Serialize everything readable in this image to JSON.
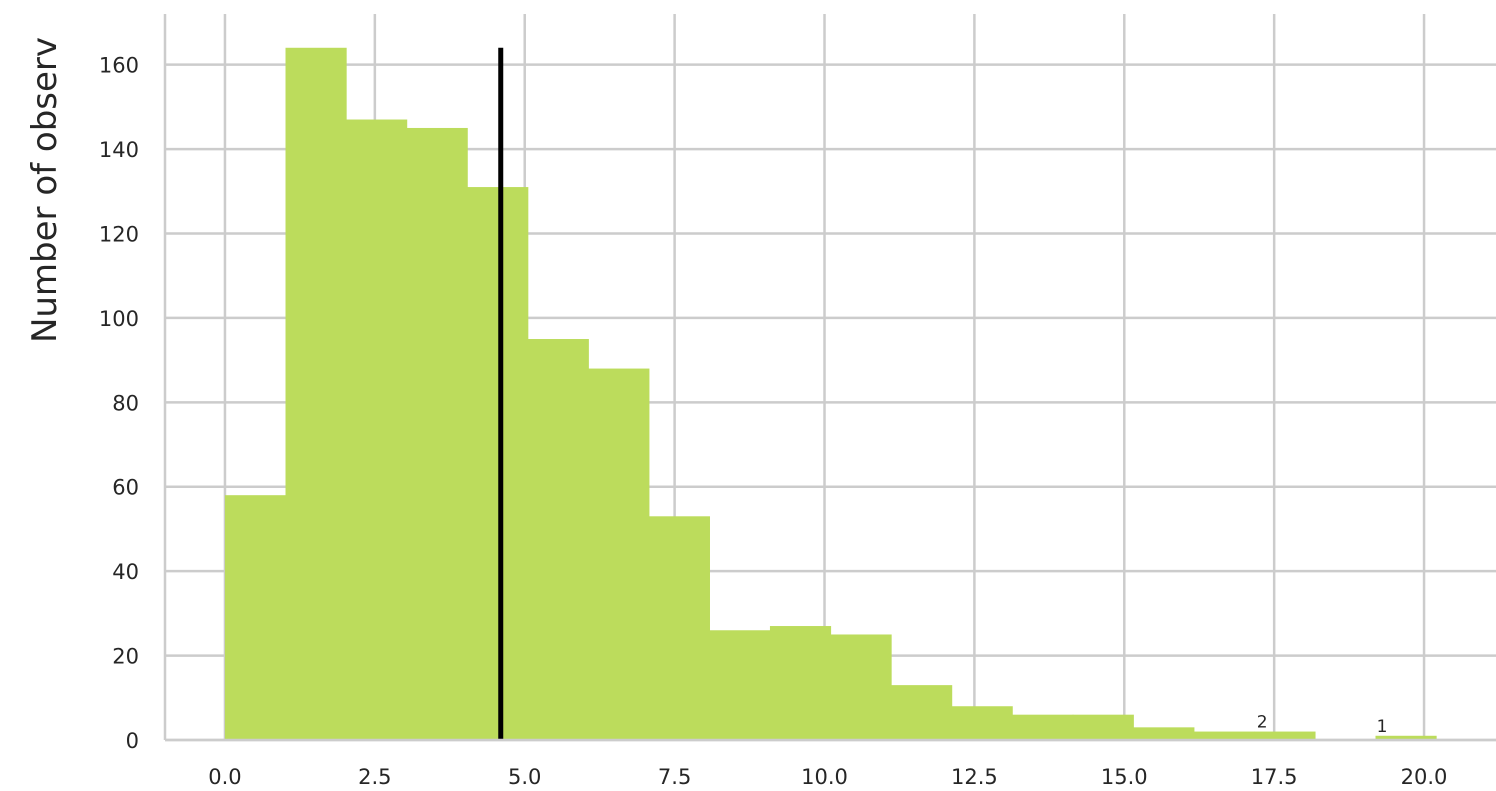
{
  "chart_data": {
    "type": "bar",
    "ylabel": "Number of observ",
    "xlim": [
      -1.0,
      21.2
    ],
    "ylim": [
      0,
      172
    ],
    "x_ticks": [
      0.0,
      2.5,
      5.0,
      7.5,
      10.0,
      12.5,
      15.0,
      17.5,
      20.0
    ],
    "x_tick_labels": [
      "0.0",
      "2.5",
      "5.0",
      "7.5",
      "10.0",
      "12.5",
      "15.0",
      "17.5",
      "20.0"
    ],
    "y_ticks": [
      0,
      20,
      40,
      60,
      80,
      100,
      120,
      140,
      160
    ],
    "y_tick_labels": [
      "0",
      "20",
      "40",
      "60",
      "80",
      "100",
      "120",
      "140",
      "160"
    ],
    "grid": true,
    "bin_edges": [
      0.0,
      1.01,
      2.02,
      3.03,
      4.04,
      5.05,
      6.06,
      7.07,
      8.08,
      9.09,
      10.1,
      11.11,
      12.12,
      13.13,
      14.14,
      15.15,
      16.16,
      17.17,
      18.18,
      19.19,
      20.2
    ],
    "counts": [
      58,
      164,
      147,
      145,
      131,
      95,
      88,
      53,
      26,
      27,
      25,
      13,
      8,
      6,
      6,
      3,
      2,
      2,
      0,
      1
    ],
    "bar_color": "#bcdc5c",
    "mean_line": {
      "x": 4.6,
      "y_top": 164,
      "color": "#000000"
    },
    "annotations": [
      {
        "text": "2",
        "x": 17.3,
        "y": 2
      },
      {
        "text": "1",
        "x": 19.3,
        "y": 1
      }
    ]
  }
}
